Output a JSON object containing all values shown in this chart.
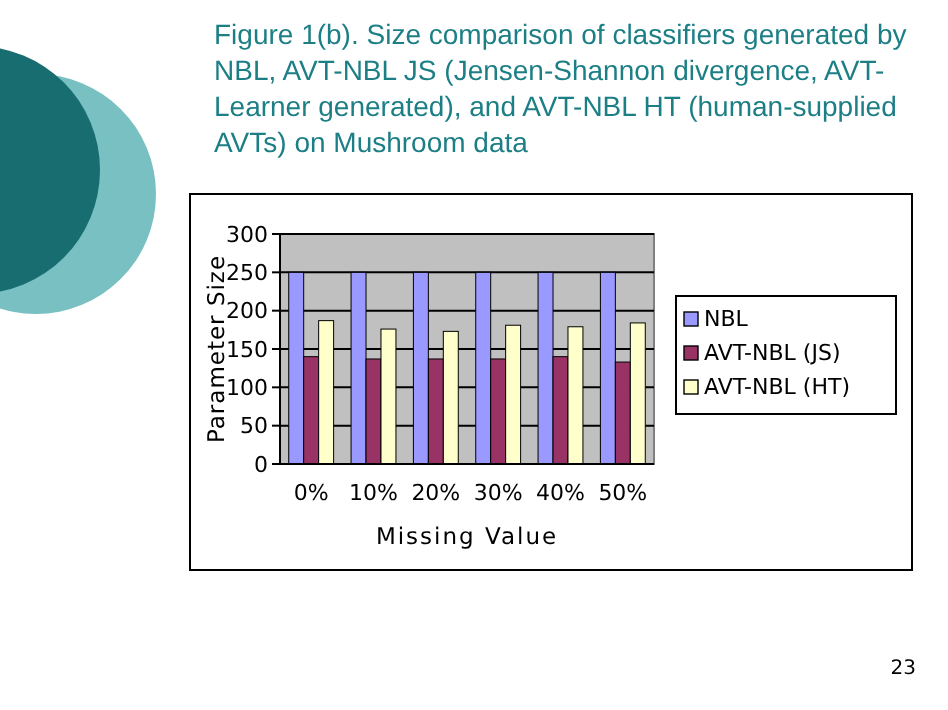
{
  "chart_data": {
    "type": "bar",
    "title": "Figure 1(b). Size comparison of classifiers generated by NBL, AVT-NBL JS (Jensen-Shannon divergence, AVT-Learner generated), and AVT-NBL HT (human-supplied AVTs) on Mushroom data",
    "xlabel": "Missing Value",
    "ylabel": "Parameter Size",
    "categories": [
      "0%",
      "10%",
      "20%",
      "30%",
      "40%",
      "50%"
    ],
    "series": [
      {
        "name": "NBL",
        "color": "#9999ff",
        "values": [
          250,
          250,
          250,
          250,
          250,
          250
        ]
      },
      {
        "name": "AVT-NBL (JS)",
        "color": "#993366",
        "values": [
          140,
          137,
          137,
          137,
          140,
          133
        ]
      },
      {
        "name": "AVT-NBL (HT)",
        "color": "#ffffcc",
        "values": [
          187,
          176,
          173,
          181,
          179,
          184
        ]
      }
    ],
    "ylim": [
      0,
      300
    ],
    "yticks": [
      0,
      50,
      100,
      150,
      200,
      250,
      300
    ],
    "grid": "y",
    "legend": "right",
    "annotations": [
      "23"
    ]
  }
}
